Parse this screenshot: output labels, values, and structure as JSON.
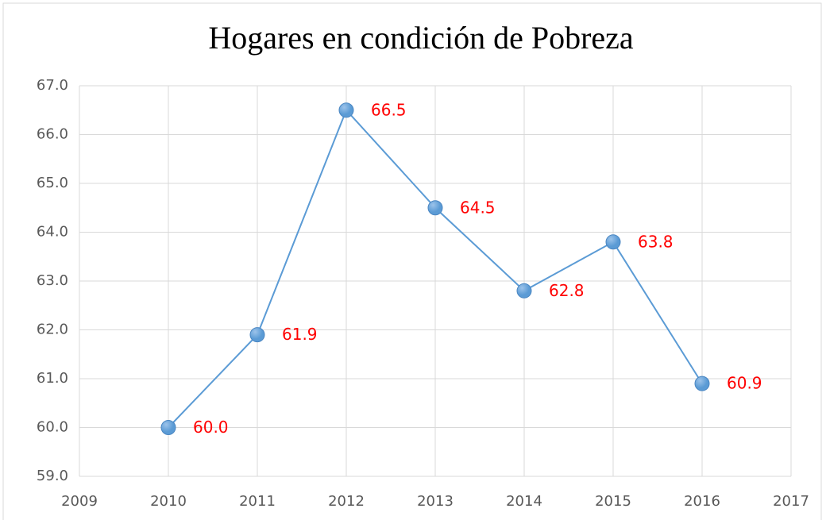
{
  "chart_data": {
    "type": "line",
    "title": "Hogares en condición de Pobreza",
    "x": [
      2010,
      2011,
      2012,
      2013,
      2014,
      2015,
      2016
    ],
    "series": [
      {
        "color": "#5b9bd5",
        "values": [
          60,
          61.9,
          66.5,
          64.5,
          62.8,
          63.8,
          60.9
        ],
        "value_labels": [
          "60.0",
          "61.9",
          "66.5",
          "64.5",
          "62.8",
          "63.8",
          "60.9"
        ],
        "label_color": "#ff0000"
      }
    ],
    "xlim": [
      2009,
      2017
    ],
    "xticks": [
      2009,
      2010,
      2011,
      2012,
      2013,
      2014,
      2015,
      2016,
      2017
    ],
    "ylim": [
      59,
      67
    ],
    "yticks": [
      {
        "value": 59,
        "label": "59.0"
      },
      {
        "value": 60,
        "label": "60.0"
      },
      {
        "value": 61,
        "label": "61.0"
      },
      {
        "value": 62,
        "label": "62.0"
      },
      {
        "value": 63,
        "label": "63.0"
      },
      {
        "value": 64,
        "label": "64.0"
      },
      {
        "value": 65,
        "label": "65.0"
      },
      {
        "value": 66,
        "label": "66.0"
      },
      {
        "value": 67,
        "label": "67.0"
      }
    ],
    "grid": true
  }
}
